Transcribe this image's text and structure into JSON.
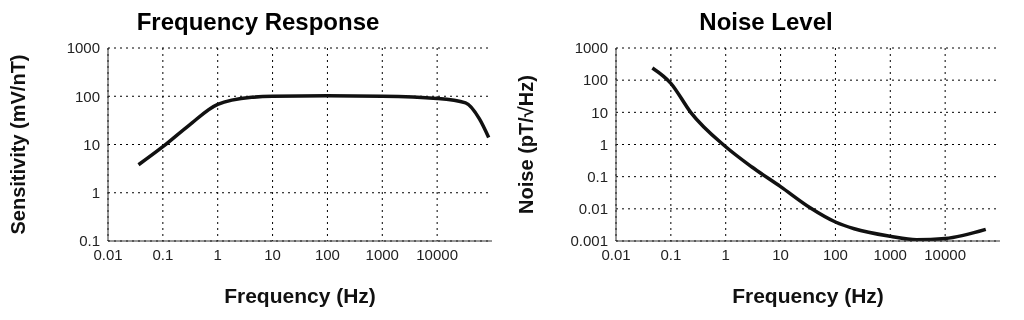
{
  "chart_data": [
    {
      "type": "line",
      "title": "Frequency Response",
      "xlabel": "Frequency (Hz)",
      "ylabel": "Sensitivity (mV/nT)",
      "log": "xy",
      "grid": true,
      "marker": "none",
      "line_style": "solid",
      "xlim": [
        0.01,
        100000
      ],
      "xticks": [
        0.01,
        0.1,
        1,
        10,
        100,
        1000,
        10000
      ],
      "ylim": [
        0.1,
        1000
      ],
      "yticks": [
        0.1,
        1,
        10,
        100,
        1000
      ],
      "x": [
        0.036,
        0.1,
        0.3,
        1,
        4.2,
        10,
        100,
        1000,
        10000,
        33000,
        59000,
        87000
      ],
      "series": [
        {
          "color": "#111111",
          "values": [
            3.8,
            9,
            25,
            68,
            95,
            100,
            102,
            100,
            90,
            73,
            34,
            14
          ]
        }
      ]
    },
    {
      "type": "line",
      "title": "Noise Level",
      "xlabel": "Frequency (Hz)",
      "ylabel": "Noise (pT/√Hz)",
      "log": "xy",
      "grid": true,
      "marker": "none",
      "line_style": "solid",
      "xlim": [
        0.01,
        100000
      ],
      "xticks": [
        0.01,
        0.1,
        1,
        10,
        100,
        1000,
        10000
      ],
      "ylim": [
        0.001,
        1000
      ],
      "yticks": [
        0.001,
        0.01,
        0.1,
        1,
        10,
        100,
        1000
      ],
      "x": [
        0.046,
        0.1,
        0.23,
        1,
        3,
        10,
        34,
        100,
        220,
        1000,
        3000,
        10000,
        55000
      ],
      "series": [
        {
          "color": "#111111",
          "values": [
            240,
            80,
            10,
            0.85,
            0.2,
            0.049,
            0.011,
            0.0039,
            0.0024,
            0.0014,
            0.0011,
            0.0012,
            0.0023
          ]
        }
      ]
    }
  ]
}
